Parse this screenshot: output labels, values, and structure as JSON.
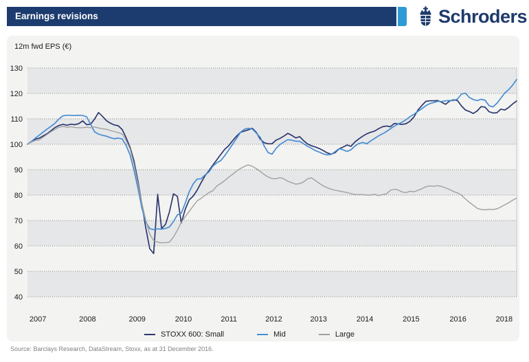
{
  "header": {
    "title": "Earnings revisions",
    "brand": "Schroders"
  },
  "footer": {
    "source": "Source: Barclays Research, DataStream, Stoxx, as at 31 December 2016."
  },
  "colors": {
    "header_bar": "#1c3b6e",
    "header_accent": "#2e9ad5",
    "brand_navy": "#1e3a6c",
    "panel_bg": "#f3f3f1",
    "band_dark": "#e6e7e9",
    "band_light": "#f3f3f1",
    "gridline": "#8c8c8c",
    "axis_text": "#1a1a1a",
    "plot_right_border": "#c9c9c9",
    "source_text": "#818181"
  },
  "chart_data": {
    "type": "line",
    "title": "Earnings revisions",
    "ylabel": "12m fwd EPS (€)",
    "ylim": [
      40,
      130
    ],
    "yticks": [
      130,
      120,
      110,
      100,
      90,
      80,
      70,
      60,
      50,
      40
    ],
    "x_tick_labels": [
      "2007",
      "2008",
      "2009",
      "2010",
      "2011",
      "2012",
      "2013",
      "2014",
      "2015",
      "2016",
      "2018"
    ],
    "x_range": "monthly observations, 2007 to early 2018, indexed to 100 at start of 2007",
    "grid": "horizontal dotted gridlines with alternating shaded bands",
    "legend_position": "bottom-center",
    "series": [
      {
        "name": "STOXX 600: Small",
        "color": "#2d376e",
        "width": 1.7,
        "values": [
          100.0,
          101.0,
          102.0,
          102.4,
          103.3,
          104.2,
          105.4,
          106.6,
          107.4,
          107.8,
          107.5,
          107.9,
          107.7,
          108.1,
          109.2,
          107.7,
          107.9,
          109.9,
          112.5,
          111.0,
          109.3,
          108.3,
          107.6,
          107.3,
          105.8,
          102.6,
          98.8,
          93.5,
          85.5,
          76.5,
          66.9,
          58.9,
          57.0,
          80.3,
          66.8,
          68.5,
          73.5,
          80.5,
          79.5,
          69.0,
          74.5,
          78.1,
          79.6,
          81.9,
          84.8,
          87.6,
          89.6,
          91.8,
          93.9,
          96.0,
          98.0,
          99.4,
          101.4,
          103.2,
          104.7,
          105.2,
          105.7,
          106.3,
          104.7,
          102.0,
          100.6,
          100.2,
          100.2,
          101.6,
          102.3,
          103.2,
          104.3,
          103.5,
          102.5,
          103.0,
          101.4,
          100.1,
          99.4,
          98.9,
          98.3,
          97.5,
          96.6,
          96.1,
          96.7,
          98.2,
          98.9,
          99.7,
          99.2,
          100.9,
          102.1,
          103.2,
          104.1,
          104.7,
          105.2,
          106.1,
          106.9,
          107.2,
          106.9,
          108.2,
          108.0,
          107.8,
          108.1,
          109.1,
          110.8,
          113.5,
          115.3,
          116.9,
          117.1,
          117.1,
          117.2,
          116.5,
          115.7,
          117.0,
          117.5,
          117.2,
          115.1,
          113.5,
          112.9,
          112.1,
          113.1,
          114.8,
          114.6,
          112.8,
          112.3,
          112.4,
          113.8,
          113.5,
          114.5,
          115.9,
          117.0
        ]
      },
      {
        "name": "Mid",
        "color": "#468cd2",
        "width": 1.7,
        "values": [
          100.0,
          101.1,
          102.4,
          103.6,
          104.8,
          106.0,
          107.1,
          108.3,
          110.0,
          111.2,
          111.4,
          111.4,
          111.3,
          111.4,
          111.3,
          110.8,
          107.9,
          104.9,
          104.0,
          103.5,
          103.2,
          102.6,
          102.2,
          102.4,
          102.1,
          99.6,
          95.8,
          89.8,
          82.7,
          74.9,
          69.3,
          66.8,
          66.4,
          66.7,
          66.6,
          66.9,
          67.5,
          69.6,
          72.2,
          72.9,
          76.9,
          81.3,
          84.4,
          86.3,
          86.4,
          87.9,
          89.1,
          91.4,
          92.7,
          93.6,
          95.5,
          97.7,
          100.0,
          102.3,
          104.7,
          105.9,
          106.3,
          106.0,
          104.4,
          102.7,
          99.3,
          96.7,
          96.1,
          98.3,
          99.9,
          100.9,
          101.8,
          101.6,
          101.2,
          101.2,
          100.2,
          99.2,
          98.4,
          97.5,
          96.9,
          96.2,
          95.8,
          96.0,
          97.1,
          98.3,
          97.8,
          97.2,
          97.8,
          99.3,
          100.3,
          100.7,
          100.2,
          101.3,
          102.3,
          103.3,
          104.1,
          105.0,
          106.1,
          107.1,
          108.0,
          108.7,
          109.7,
          110.9,
          111.8,
          113.0,
          114.0,
          115.2,
          116.0,
          116.4,
          116.9,
          116.8,
          117.1,
          117.2,
          117.2,
          117.8,
          119.7,
          120.1,
          118.4,
          117.6,
          117.2,
          117.7,
          117.3,
          115.2,
          114.7,
          116.1,
          118.1,
          120.2,
          121.5,
          123.3,
          125.5
        ]
      },
      {
        "name": "Large",
        "color": "#a0a0a0",
        "width": 1.4,
        "values": [
          100.0,
          100.8,
          101.5,
          101.7,
          102.8,
          103.9,
          105.0,
          105.9,
          106.7,
          107.0,
          106.7,
          106.9,
          106.6,
          106.5,
          106.5,
          106.7,
          106.5,
          106.8,
          106.4,
          106.1,
          105.9,
          105.4,
          105.0,
          104.6,
          104.0,
          101.5,
          98.2,
          92.2,
          84.5,
          76.8,
          70.0,
          64.6,
          62.1,
          61.5,
          61.2,
          61.3,
          61.5,
          63.5,
          66.2,
          69.3,
          71.5,
          73.6,
          75.7,
          77.7,
          78.7,
          79.9,
          81.0,
          81.7,
          83.6,
          84.6,
          85.7,
          87.0,
          88.2,
          89.4,
          90.5,
          91.3,
          91.9,
          91.3,
          90.4,
          89.3,
          88.1,
          87.1,
          86.5,
          86.4,
          86.9,
          86.4,
          85.4,
          84.9,
          84.3,
          84.5,
          85.2,
          86.4,
          86.8,
          85.7,
          84.6,
          83.6,
          82.9,
          82.3,
          81.9,
          81.6,
          81.3,
          81.0,
          80.6,
          80.2,
          80.2,
          80.2,
          80.0,
          80.0,
          80.3,
          79.8,
          80.2,
          80.5,
          81.9,
          82.3,
          82.0,
          81.2,
          81.0,
          81.5,
          81.3,
          81.9,
          82.5,
          83.3,
          83.6,
          83.5,
          83.7,
          83.4,
          82.8,
          82.2,
          81.4,
          80.9,
          80.0,
          78.5,
          77.2,
          76.0,
          74.8,
          74.3,
          74.2,
          74.4,
          74.3,
          74.6,
          75.3,
          76.2,
          77.0,
          78.0,
          78.8
        ]
      }
    ]
  }
}
